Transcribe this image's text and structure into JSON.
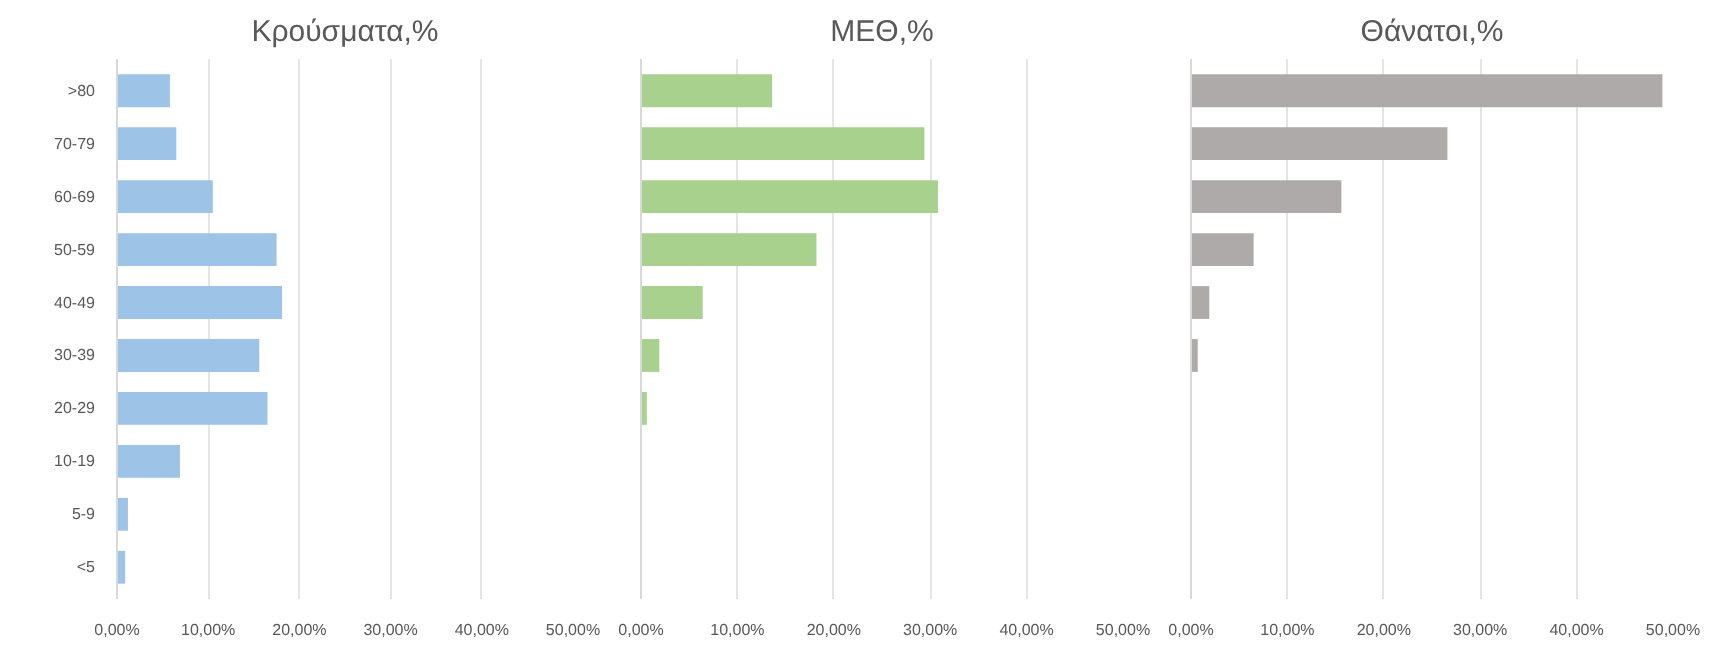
{
  "chart_data": [
    {
      "type": "bar",
      "orientation": "horizontal",
      "title": "Κρούσματα,%",
      "categories": [
        ">80",
        "70-79",
        "60-69",
        "50-59",
        "40-49",
        "30-39",
        "20-29",
        "10-19",
        "5-9",
        "<5"
      ],
      "values": [
        5.8,
        6.5,
        10.5,
        17.5,
        18.1,
        15.6,
        16.5,
        6.9,
        1.2,
        0.9
      ],
      "color": "#9dc3e6",
      "xlim": [
        0,
        50
      ],
      "xticks": [
        {
          "value": 0,
          "label": "0,00%"
        },
        {
          "value": 10,
          "label": "10,00%"
        },
        {
          "value": 20,
          "label": "20,00%"
        },
        {
          "value": 30,
          "label": "30,00%"
        },
        {
          "value": 40,
          "label": "40,00%"
        },
        {
          "value": 50,
          "label": "50,00%"
        }
      ],
      "grid": "x"
    },
    {
      "type": "bar",
      "orientation": "horizontal",
      "title": "ΜΕΘ,%",
      "categories": [
        null,
        null,
        null,
        null,
        null,
        null,
        null,
        null,
        null,
        null
      ],
      "values": [
        13.6,
        29.4,
        30.8,
        18.2,
        6.4,
        1.9,
        0.6,
        null,
        null,
        null
      ],
      "color": "#a9d18e",
      "xlim": [
        0,
        50
      ],
      "xticks": [
        {
          "value": 0,
          "label": "0,00%"
        },
        {
          "value": 10,
          "label": "10,00%"
        },
        {
          "value": 20,
          "label": "20,00%"
        },
        {
          "value": 30,
          "label": "30,00%"
        },
        {
          "value": 40,
          "label": "40,00%"
        },
        {
          "value": 50,
          "label": "50,00%"
        }
      ],
      "grid": "x",
      "tick_labels": "x"
    },
    {
      "type": "bar",
      "orientation": "horizontal",
      "title": "Θάνατοι,%",
      "categories": [
        null,
        null,
        null,
        null,
        null,
        null,
        null,
        null,
        null,
        null
      ],
      "values": [
        48.9,
        26.6,
        15.6,
        6.5,
        1.9,
        0.7,
        null,
        null,
        0,
        0
      ],
      "color": "#aeaaaa",
      "xlim": [
        0,
        50
      ],
      "xticks": [
        {
          "value": 0,
          "label": "0,00%"
        },
        {
          "value": 10,
          "label": "10,00%"
        },
        {
          "value": 20,
          "label": "20,00%"
        },
        {
          "value": 30,
          "label": "30,00%"
        },
        {
          "value": 40,
          "label": "40,00%"
        },
        {
          "value": 50,
          "label": "50,00%"
        }
      ],
      "grid": "x",
      "tick_labels": "x"
    }
  ]
}
